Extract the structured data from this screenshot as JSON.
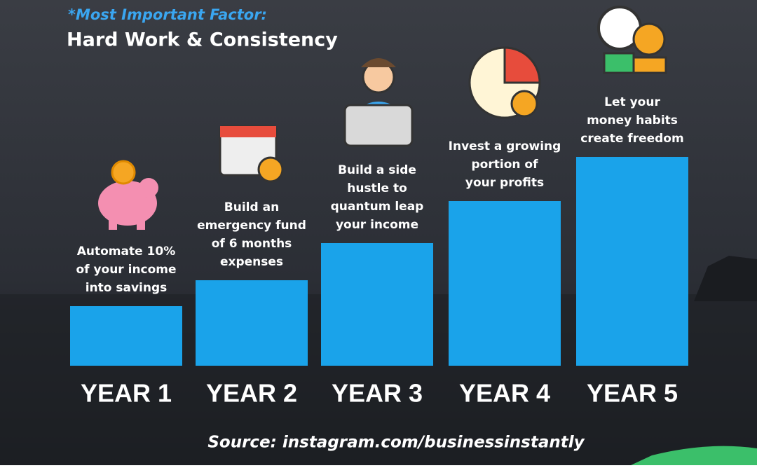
{
  "header": {
    "kicker": "*Most Important Factor:",
    "title": "Hard Work & Consistency"
  },
  "steps": [
    {
      "label": "YEAR 1",
      "lines": [
        "Automate 10%",
        "of your income",
        "into savings"
      ]
    },
    {
      "label": "YEAR 2",
      "lines": [
        "Build an",
        "emergency fund",
        "of 6 months",
        "expenses"
      ]
    },
    {
      "label": "YEAR 3",
      "lines": [
        "Build a side",
        "hustle to",
        "quantum leap",
        "your income"
      ]
    },
    {
      "label": "YEAR 4",
      "lines": [
        "Invest a growing",
        "portion of",
        "your profits"
      ]
    },
    {
      "label": "YEAR 5",
      "lines": [
        "Let your",
        "money habits",
        "create freedom"
      ]
    }
  ],
  "source": "Source: instagram.com/businessinstantly"
}
